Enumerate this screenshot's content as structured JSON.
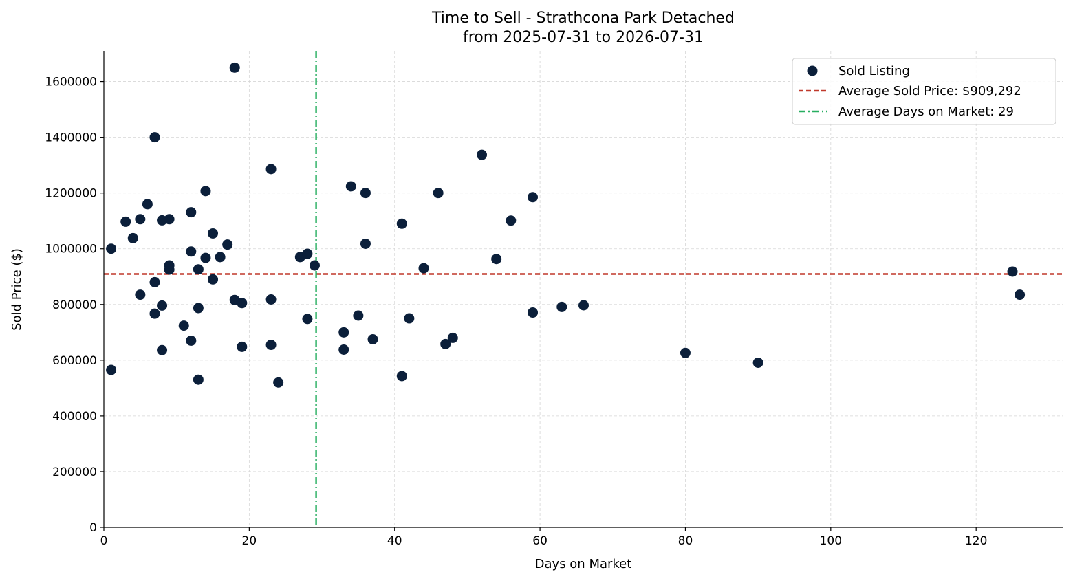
{
  "chart_data": {
    "type": "scatter",
    "title": "Time to Sell - Strathcona Park Detached",
    "subtitle": "from 2025-07-31 to 2026-07-31",
    "xlabel": "Days on Market",
    "ylabel": "Sold Price ($)",
    "xlim": [
      0,
      132
    ],
    "ylim": [
      0,
      1710000
    ],
    "xticks": [
      0,
      20,
      40,
      60,
      80,
      100,
      120
    ],
    "yticks": [
      0,
      200000,
      400000,
      600000,
      800000,
      1000000,
      1200000,
      1400000,
      1600000
    ],
    "grid": true,
    "legend_position": "top-right",
    "series": [
      {
        "name": "Sold Listing",
        "color": "#0b1f3a",
        "points": [
          [
            1,
            1000000
          ],
          [
            1,
            565000
          ],
          [
            3,
            1097000
          ],
          [
            4,
            1038000
          ],
          [
            5,
            1106000
          ],
          [
            5,
            835000
          ],
          [
            6,
            1160000
          ],
          [
            7,
            1400000
          ],
          [
            7,
            880000
          ],
          [
            7,
            767000
          ],
          [
            8,
            1102000
          ],
          [
            8,
            796000
          ],
          [
            8,
            636000
          ],
          [
            9,
            1106000
          ],
          [
            9,
            940000
          ],
          [
            9,
            925000
          ],
          [
            11,
            724000
          ],
          [
            12,
            1131000
          ],
          [
            12,
            990000
          ],
          [
            12,
            670000
          ],
          [
            13,
            926000
          ],
          [
            13,
            787000
          ],
          [
            13,
            530000
          ],
          [
            14,
            1207000
          ],
          [
            14,
            967000
          ],
          [
            15,
            1055000
          ],
          [
            15,
            890000
          ],
          [
            16,
            970000
          ],
          [
            17,
            1015000
          ],
          [
            18,
            1650000
          ],
          [
            18,
            816000
          ],
          [
            19,
            805000
          ],
          [
            19,
            648000
          ],
          [
            23,
            1286000
          ],
          [
            23,
            818000
          ],
          [
            23,
            655000
          ],
          [
            24,
            520000
          ],
          [
            27,
            970000
          ],
          [
            28,
            982000
          ],
          [
            28,
            748000
          ],
          [
            29,
            940000
          ],
          [
            33,
            700000
          ],
          [
            33,
            638000
          ],
          [
            34,
            1224000
          ],
          [
            35,
            760000
          ],
          [
            36,
            1200000
          ],
          [
            36,
            1018000
          ],
          [
            37,
            675000
          ],
          [
            41,
            1090000
          ],
          [
            41,
            543000
          ],
          [
            42,
            750000
          ],
          [
            44,
            930000
          ],
          [
            46,
            1200000
          ],
          [
            47,
            658000
          ],
          [
            48,
            680000
          ],
          [
            52,
            1337000
          ],
          [
            54,
            963000
          ],
          [
            56,
            1101000
          ],
          [
            59,
            1185000
          ],
          [
            59,
            771000
          ],
          [
            63,
            791000
          ],
          [
            66,
            797000
          ],
          [
            80,
            626000
          ],
          [
            90,
            591000
          ],
          [
            125,
            918000
          ],
          [
            126,
            835000
          ]
        ]
      }
    ],
    "reference_lines": [
      {
        "name": "Average Sold Price: $909,292",
        "orientation": "horizontal",
        "value": 909292,
        "color": "#c0392b",
        "style": "dashed"
      },
      {
        "name": "Average Days on Market: 29",
        "orientation": "vertical",
        "value": 29.2,
        "color": "#27ae60",
        "style": "dashdot"
      }
    ]
  }
}
